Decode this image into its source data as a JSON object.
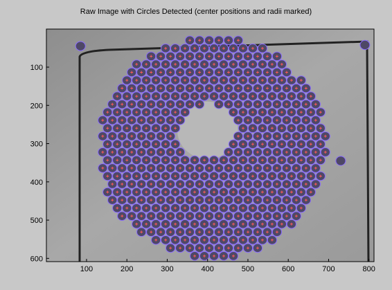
{
  "chart_data": {
    "type": "image",
    "title": "Raw Image with Circles Detected (center positions and radii marked)",
    "xlim": [
      0.5,
      812.5
    ],
    "ylim": [
      0.5,
      608.5
    ],
    "y_reversed": true,
    "xticks": [
      100,
      200,
      300,
      400,
      500,
      600,
      700,
      800
    ],
    "yticks": [
      100,
      200,
      300,
      400,
      500,
      600
    ]
  }
}
